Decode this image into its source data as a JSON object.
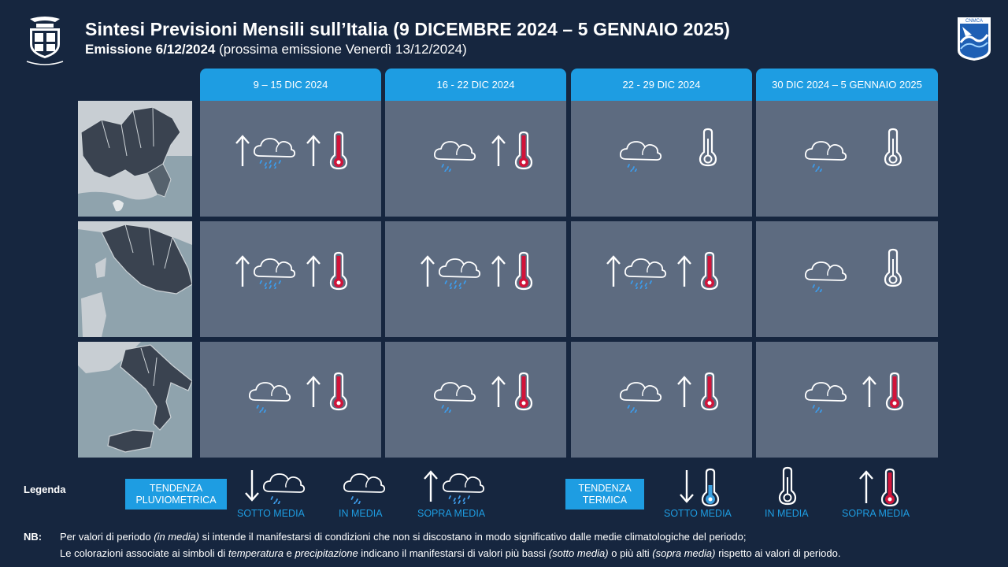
{
  "header": {
    "title": "Sintesi  Previsioni Mensili sull’Italia (9 DICEMBRE 2024 – 5 GENNAIO 2025)",
    "emission_label": "Emissione  6/12/2024",
    "next_emission": " (prossima emissione Venerdì 13/12/2024)",
    "left_logo": "aeronautica-militare-crest",
    "right_logo": "cnmca-logo"
  },
  "columns": [
    "9 – 15 DIC  2024",
    "16 - 22 DIC 2024",
    "22 - 29 DIC 2024",
    "30 DIC 2024 – 5 GENNAIO 2025"
  ],
  "rows": [
    {
      "region": "north-italy-map",
      "cells": [
        {
          "precip": "above",
          "temp": "above"
        },
        {
          "precip": "normal",
          "temp": "above"
        },
        {
          "precip": "normal",
          "temp": "normal"
        },
        {
          "precip": "normal",
          "temp": "normal"
        }
      ]
    },
    {
      "region": "central-italy-map",
      "cells": [
        {
          "precip": "above",
          "temp": "above"
        },
        {
          "precip": "above",
          "temp": "above"
        },
        {
          "precip": "above",
          "temp": "above"
        },
        {
          "precip": "normal",
          "temp": "normal"
        }
      ]
    },
    {
      "region": "south-italy-map",
      "cells": [
        {
          "precip": "normal",
          "temp": "above"
        },
        {
          "precip": "normal",
          "temp": "above"
        },
        {
          "precip": "normal",
          "temp": "above"
        },
        {
          "precip": "normal",
          "temp": "above"
        }
      ]
    }
  ],
  "legend": {
    "title": "Legenda",
    "precip_box": "TENDENZA PLUVIOMETRICA",
    "temp_box": "TENDENZA TERMICA",
    "below": "SOTTO  MEDIA",
    "normal": "IN MEDIA",
    "above": "SOPRA MEDIA",
    "label_color": "#1e9de2"
  },
  "notes": {
    "nb": "NB:",
    "line1_a": "Per valori di periodo ",
    "line1_b": "(in media)",
    "line1_c": " si intende il manifestarsi di condizioni che non  si discostano in modo significativo dalle medie climatologiche del periodo;",
    "line2_a": "Le colorazioni associate ai simboli di ",
    "line2_b": "temperatura",
    "line2_c": " e ",
    "line2_d": "precipitazione",
    "line2_e": " indicano il manifestarsi di valori più bassi ",
    "line2_f": "(sotto media)",
    "line2_g": " o più alti ",
    "line2_h": "(sopra media)",
    "line2_i": " rispetto ai valori di periodo."
  },
  "colors": {
    "background": "#16263f",
    "header_blue": "#1e9de2",
    "cell_grey": "#5d6b80",
    "warm_red": "#d2143a",
    "cold_blue": "#3aa0e0",
    "rain_blue": "#3d9be9"
  }
}
